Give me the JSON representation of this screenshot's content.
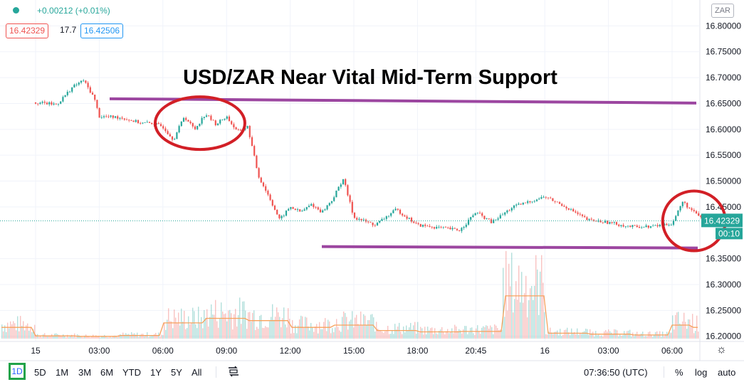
{
  "header": {
    "change_text": "+0.00212 (+0.01%)",
    "bid": "16.42329",
    "spread": "17.7",
    "ask": "16.42506",
    "currency_button": "ZAR"
  },
  "price_axis": {
    "last_price_label": "16.42329",
    "countdown_label": "00:10",
    "last_price_color": "#26a69a"
  },
  "bottom_bar": {
    "intervals": [
      "1D",
      "5D",
      "1M",
      "3M",
      "6M",
      "YTD",
      "1Y",
      "5Y",
      "All"
    ],
    "active_interval": "1D",
    "time_utc": "07:36:50 (UTC)",
    "percent_label": "%",
    "log_label": "log",
    "auto_label": "auto"
  },
  "colors": {
    "up": "#26a69a",
    "down": "#ef5350",
    "support_resistance": "#9c46a0",
    "circle_annotation": "#d21f26",
    "volume_ma": "#f7a25c"
  },
  "chart_data": {
    "type": "line",
    "title": "USD/ZAR Near Vital Mid-Term Support",
    "x_tick_labels": [
      "15",
      "03:00",
      "06:00",
      "09:00",
      "12:00",
      "15:00",
      "18:00",
      "20:45",
      "16",
      "03:00",
      "06:00"
    ],
    "y_tick_labels": [
      "16.80000",
      "16.75000",
      "16.70000",
      "16.65000",
      "16.60000",
      "16.55000",
      "16.50000",
      "16.45000",
      "16.35000",
      "16.30000",
      "16.25000",
      "16.20000"
    ],
    "ylim": [
      16.19,
      16.85
    ],
    "series": [
      {
        "x": [
          "15 00:00",
          "15 01:00",
          "15 01:45",
          "15 02:15",
          "15 02:45",
          "15 03:00",
          "15 04:00",
          "15 05:00",
          "15 05:30",
          "15 06:00",
          "15 06:30",
          "15 07:00",
          "15 07:30",
          "15 08:00",
          "15 08:30",
          "15 09:00",
          "15 09:30",
          "15 10:00",
          "15 10:30",
          "15 11:00",
          "15 11:30",
          "15 12:00",
          "15 12:30",
          "15 13:00",
          "15 13:30",
          "15 14:00",
          "15 14:30",
          "15 15:00",
          "15 16:00",
          "15 17:00",
          "15 18:00",
          "15 19:00",
          "15 20:00",
          "15 20:45",
          "15 21:30",
          "15 22:30",
          "16 00:00",
          "16 01:00",
          "16 02:00",
          "16 03:00",
          "16 04:00",
          "16 05:00",
          "16 06:00",
          "16 06:30",
          "16 07:00",
          "16 07:36"
        ],
        "values": [
          16.652,
          16.648,
          16.682,
          16.695,
          16.662,
          16.625,
          16.623,
          16.612,
          16.612,
          16.605,
          16.58,
          16.625,
          16.6,
          16.63,
          16.61,
          16.625,
          16.595,
          16.605,
          16.51,
          16.47,
          16.425,
          16.45,
          16.44,
          16.455,
          16.44,
          16.465,
          16.505,
          16.43,
          16.415,
          16.445,
          16.415,
          16.41,
          16.405,
          16.44,
          16.42,
          16.45,
          16.47,
          16.45,
          16.425,
          16.42,
          16.412,
          16.412,
          16.418,
          16.46,
          16.44,
          16.423
        ]
      }
    ],
    "annotations": {
      "resistance_level": 16.655,
      "support_level": 16.372,
      "circled_periods": [
        "15 06:00–09:30",
        "16 06:00–07:30"
      ]
    },
    "volume": {
      "hours": [
        "15 00",
        "15 02",
        "15 04",
        "15 06",
        "15 08",
        "15 10",
        "15 12",
        "15 14",
        "15 16",
        "15 18",
        "15 20",
        "15 22",
        "16 00",
        "16 02",
        "16 04",
        "16 06",
        "16 07"
      ],
      "values": [
        0.06,
        0.05,
        0.07,
        0.35,
        0.45,
        0.4,
        0.25,
        0.3,
        0.18,
        0.15,
        0.16,
        0.95,
        0.12,
        0.1,
        0.08,
        0.3,
        0.25
      ],
      "scale": "relative"
    },
    "grid": true,
    "legend": "none"
  }
}
